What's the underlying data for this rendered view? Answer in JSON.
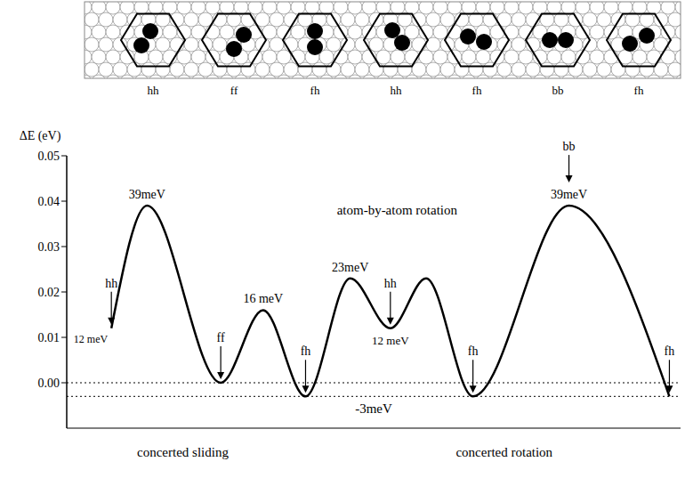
{
  "schematic": {
    "labels": [
      "hh",
      "ff",
      "fh",
      "hh",
      "fh",
      "bb",
      "fh"
    ]
  },
  "chart_data": {
    "type": "line",
    "y_label": "ΔE (eV)",
    "x": [
      0,
      1.6,
      4.9,
      6.8,
      8.7,
      10.7,
      12.5,
      14.1,
      16.2,
      20.5,
      25
    ],
    "values": [
      0.012,
      0.039,
      0,
      0.016,
      -0.003,
      0.023,
      0.012,
      0.023,
      -0.003,
      0.039,
      -0.003
    ],
    "point_labels": [
      "hh",
      null,
      "ff",
      null,
      "fh",
      null,
      "hh",
      null,
      "fh",
      "bb",
      "fh"
    ],
    "value_labels": [
      "12 meV",
      "39meV",
      null,
      "16 meV",
      null,
      "23meV",
      "12 meV",
      null,
      null,
      "39meV",
      null
    ],
    "reference_lines": [
      {
        "value": 0
      },
      {
        "value": -0.003,
        "label": "-3meV"
      }
    ],
    "annotations": [
      {
        "text": "atom-by-atom rotation",
        "x": 12.8,
        "y": 0.037
      },
      {
        "text": "concerted sliding",
        "x": 3.2,
        "y": -0.01
      },
      {
        "text": "concerted rotation",
        "x": 17.6,
        "y": -0.01
      }
    ],
    "xlim": [
      -2,
      25.5
    ],
    "ylim": [
      -0.01,
      0.05
    ],
    "yticks": [
      {
        "value": 0,
        "label": "0.00"
      },
      {
        "value": 0.01,
        "label": "0.01"
      },
      {
        "value": 0.02,
        "label": "0.02"
      },
      {
        "value": 0.03,
        "label": "0.03"
      },
      {
        "value": 0.04,
        "label": "0.04"
      },
      {
        "value": 0.05,
        "label": "0.05"
      }
    ],
    "color": "#000000",
    "tick_labels": "y",
    "grid": false
  }
}
